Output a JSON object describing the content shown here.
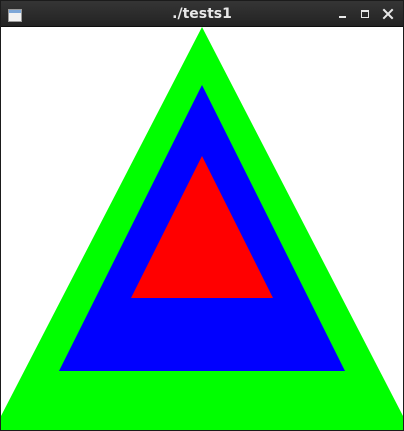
{
  "window": {
    "title": "./tests1",
    "icons": {
      "app": "window-icon",
      "minimize": "minimize-icon",
      "maximize": "maximize-icon",
      "close": "close-icon"
    }
  },
  "colors": {
    "titlebar": "#2b2b2b",
    "title_text": "#e8e8e8",
    "background": "#ffffff",
    "outer_triangle": "#00ff00",
    "middle_triangle": "#0000ff",
    "inner_triangle": "#ff0000"
  }
}
